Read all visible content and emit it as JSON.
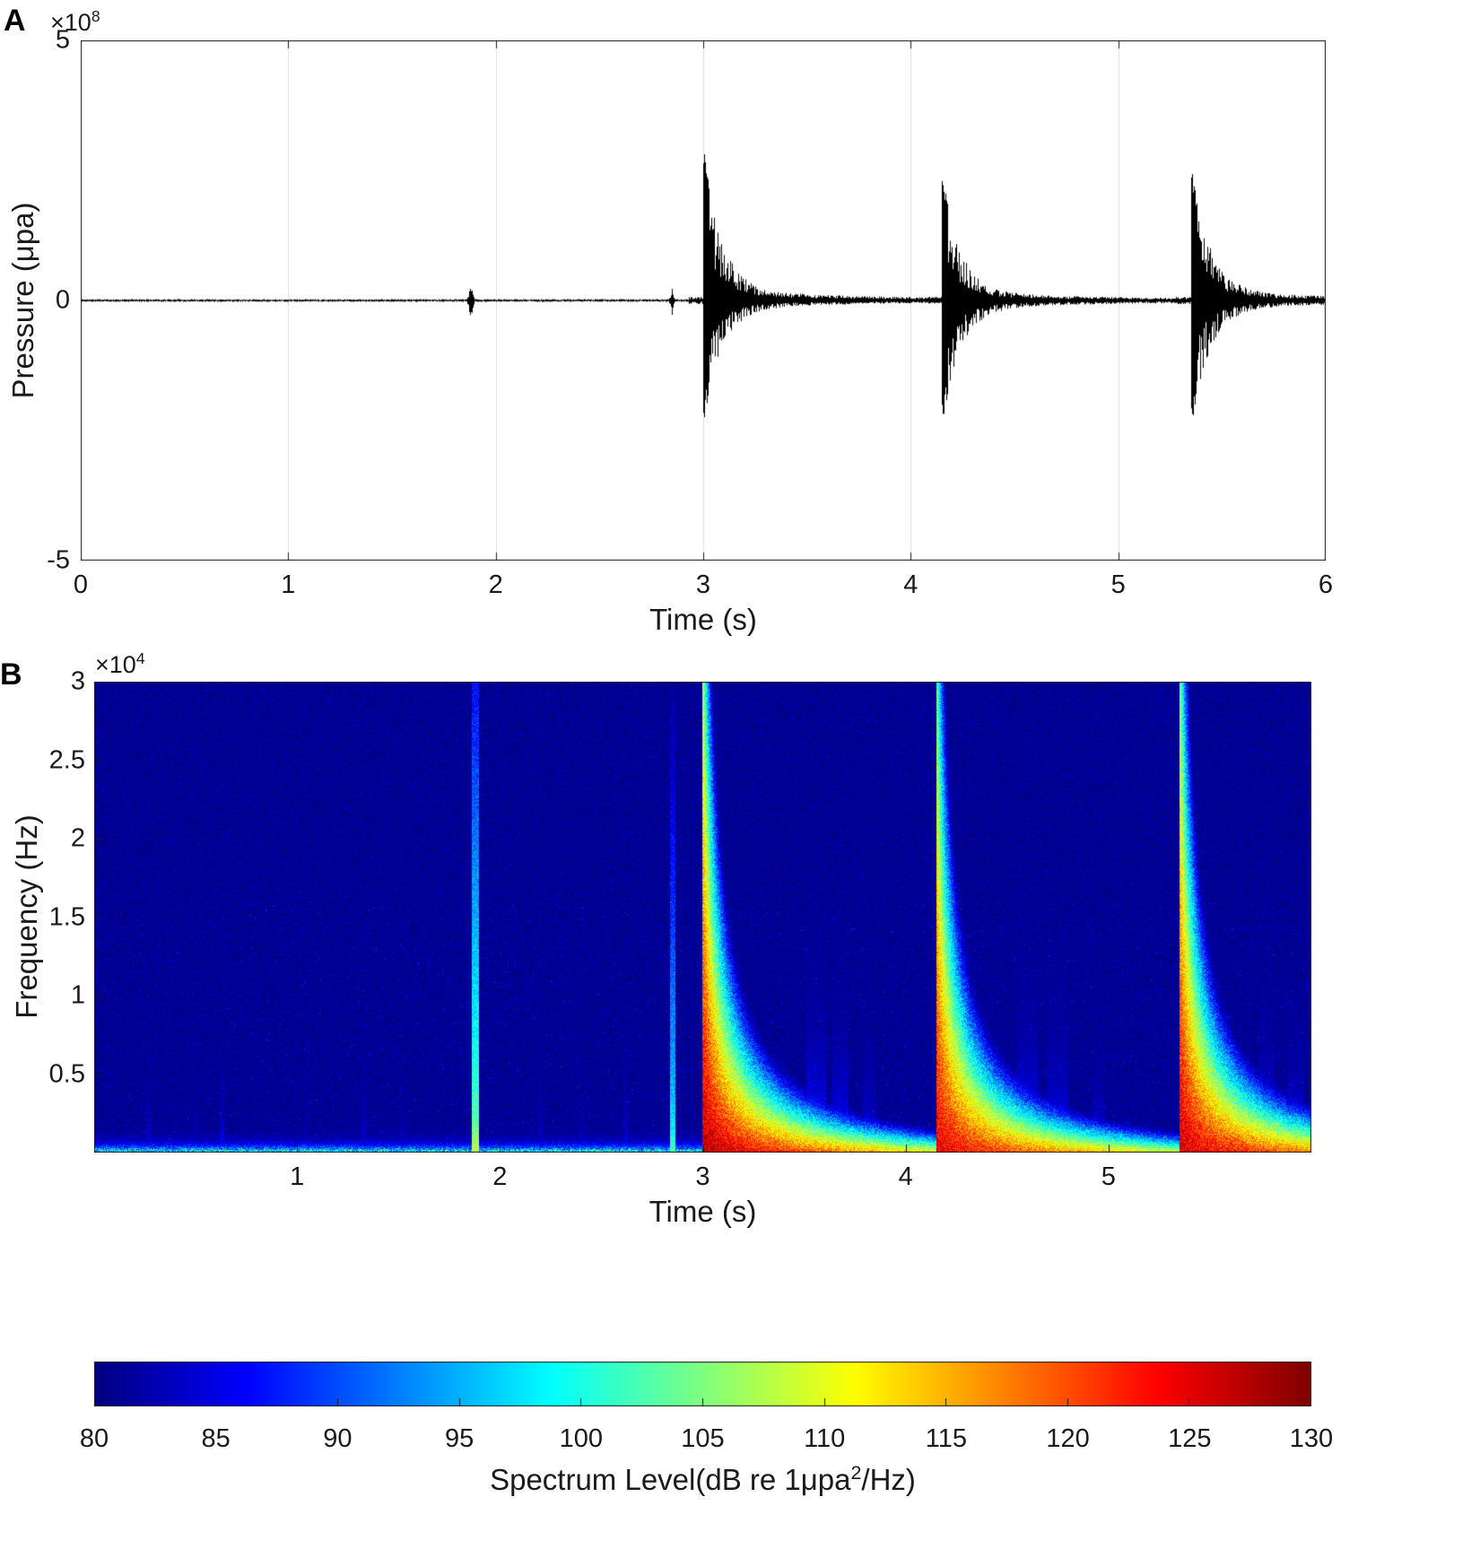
{
  "figure": {
    "panel_a_label": "A",
    "panel_b_label": "B"
  },
  "chart_data": [
    {
      "id": "waveform",
      "type": "line",
      "title": "",
      "xlabel": "Time (s)",
      "ylabel": "Pressure (μpa)",
      "y_exponent": {
        "base": "×10",
        "exp": "8"
      },
      "xlim": [
        0,
        6
      ],
      "ylim": [
        -500000000,
        500000000
      ],
      "x_ticks": [
        0,
        1,
        2,
        3,
        4,
        5,
        6
      ],
      "y_ticks": [
        5,
        0,
        -5
      ],
      "y_axis_display_lim": [
        -5,
        5
      ],
      "grid": "vertical",
      "grid_color": "rgba(38,38,38,0.14)",
      "line_color": "#000000",
      "background_noise_amplitude": 2200000,
      "events": [
        {
          "kind": "click",
          "time": 1.88,
          "peak": 38000000,
          "duration": 0.02
        },
        {
          "kind": "click",
          "time": 2.85,
          "peak": 30000000,
          "duration": 0.015
        },
        {
          "kind": "impulse",
          "time": 3.0,
          "peak": 285000000,
          "negative_peak": -235000000,
          "decay_seconds": 0.45
        },
        {
          "kind": "impulse",
          "time": 4.15,
          "peak": 238000000,
          "negative_peak": -238000000,
          "decay_seconds": 0.45
        },
        {
          "kind": "impulse",
          "time": 5.35,
          "peak": 258000000,
          "negative_peak": -240000000,
          "decay_seconds": 0.45
        }
      ]
    },
    {
      "id": "spectrogram",
      "type": "heatmap",
      "title": "",
      "xlabel": "Time (s)",
      "ylabel": "Frequency (Hz)",
      "y_exponent": {
        "base": "×10",
        "exp": "4"
      },
      "xlim": [
        0,
        6
      ],
      "ylim": [
        0,
        30000
      ],
      "x_ticks": [
        1,
        2,
        3,
        4,
        5
      ],
      "y_ticks": [
        3,
        2.5,
        2,
        1.5,
        1,
        0.5
      ],
      "y_axis_display_lim": [
        0,
        3
      ],
      "colormap": "jet",
      "clim": [
        80,
        130
      ],
      "background_level_db": 80,
      "noise_floor": {
        "amplitude_db": 27,
        "scale_hz": 380
      },
      "events": [
        {
          "kind": "narrow",
          "time": 1.88,
          "level_db": 103,
          "width_seconds": 0.036
        },
        {
          "kind": "narrow",
          "time": 2.85,
          "level_db": 97,
          "width_seconds": 0.026
        },
        {
          "kind": "broadband",
          "time": 3.0,
          "onset_level_db": 127,
          "decay_seconds": 0.9
        },
        {
          "kind": "broadband",
          "time": 4.15,
          "onset_level_db": 125,
          "decay_seconds": 0.9
        },
        {
          "kind": "broadband",
          "time": 5.35,
          "onset_level_db": 126,
          "decay_seconds": 0.9
        }
      ],
      "minor_streaks": [
        {
          "time": 0.27,
          "amplitude_db": 7,
          "scale_hz": 3000,
          "width": 0.012
        },
        {
          "time": 0.5,
          "amplitude_db": 5,
          "scale_hz": 2500,
          "width": 0.012
        },
        {
          "time": 0.63,
          "amplitude_db": 9,
          "scale_hz": 3000,
          "width": 0.012
        },
        {
          "time": 1.05,
          "amplitude_db": 5,
          "scale_hz": 2500,
          "width": 0.012
        },
        {
          "time": 1.33,
          "amplitude_db": 7,
          "scale_hz": 3000,
          "width": 0.012
        },
        {
          "time": 1.52,
          "amplitude_db": 5,
          "scale_hz": 2500,
          "width": 0.012
        },
        {
          "time": 2.2,
          "amplitude_db": 6,
          "scale_hz": 3000,
          "width": 0.012
        },
        {
          "time": 2.4,
          "amplitude_db": 5,
          "scale_hz": 2500,
          "width": 0.012
        },
        {
          "time": 2.62,
          "amplitude_db": 8,
          "scale_hz": 3200,
          "width": 0.012
        },
        {
          "time": 3.56,
          "amplitude_db": 17,
          "scale_hz": 4200,
          "width": 0.05
        },
        {
          "time": 3.68,
          "amplitude_db": 14,
          "scale_hz": 4000,
          "width": 0.04
        },
        {
          "time": 3.82,
          "amplitude_db": 10,
          "scale_hz": 3500,
          "width": 0.03
        },
        {
          "time": 4.6,
          "amplitude_db": 16,
          "scale_hz": 4200,
          "width": 0.05
        },
        {
          "time": 4.75,
          "amplitude_db": 13,
          "scale_hz": 4000,
          "width": 0.05
        },
        {
          "time": 4.95,
          "amplitude_db": 10,
          "scale_hz": 3000,
          "width": 0.03
        },
        {
          "time": 5.78,
          "amplitude_db": 13,
          "scale_hz": 3800,
          "width": 0.04
        },
        {
          "time": 5.92,
          "amplitude_db": 12,
          "scale_hz": 3500,
          "width": 0.04
        }
      ]
    },
    {
      "id": "colorbar",
      "type": "colorbar",
      "colormap": "jet",
      "orientation": "horizontal",
      "range": [
        80,
        130
      ],
      "ticks": [
        80,
        85,
        90,
        95,
        100,
        105,
        110,
        115,
        120,
        125,
        130
      ],
      "label": "Spectrum Level(dB re 1μpa²/Hz)",
      "label_parts": {
        "pre": "Spectrum Level(dB re 1μpa",
        "sup": "2",
        "post": "/Hz)"
      }
    }
  ]
}
